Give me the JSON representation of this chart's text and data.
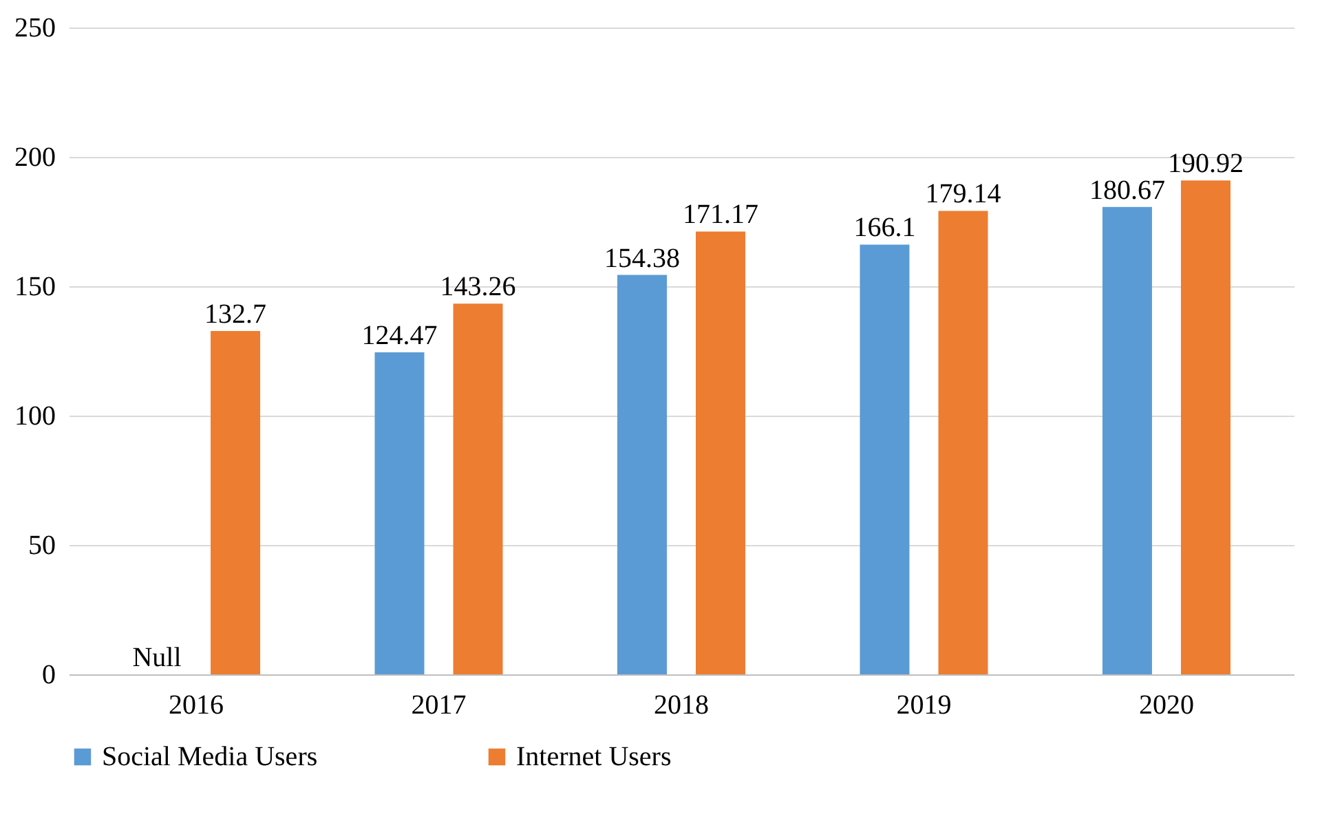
{
  "chart_data": {
    "type": "bar",
    "categories": [
      "2016",
      "2017",
      "2018",
      "2019",
      "2020"
    ],
    "series": [
      {
        "name": "Social Media Users",
        "color": "#5b9bd5",
        "values": [
          null,
          124.47,
          154.38,
          166.1,
          180.67
        ],
        "value_labels": [
          "Null",
          "124.47",
          "154.38",
          "166.1",
          "180.67"
        ]
      },
      {
        "name": "Internet Users",
        "color": "#ed7d31",
        "values": [
          132.7,
          143.26,
          171.17,
          179.14,
          190.92
        ],
        "value_labels": [
          "132.7",
          "143.26",
          "171.17",
          "179.14",
          "190.92"
        ]
      }
    ],
    "ylim": [
      0,
      250
    ],
    "yticks": [
      0,
      50,
      100,
      150,
      200,
      250
    ],
    "grid": "y",
    "legend": "bottom"
  }
}
